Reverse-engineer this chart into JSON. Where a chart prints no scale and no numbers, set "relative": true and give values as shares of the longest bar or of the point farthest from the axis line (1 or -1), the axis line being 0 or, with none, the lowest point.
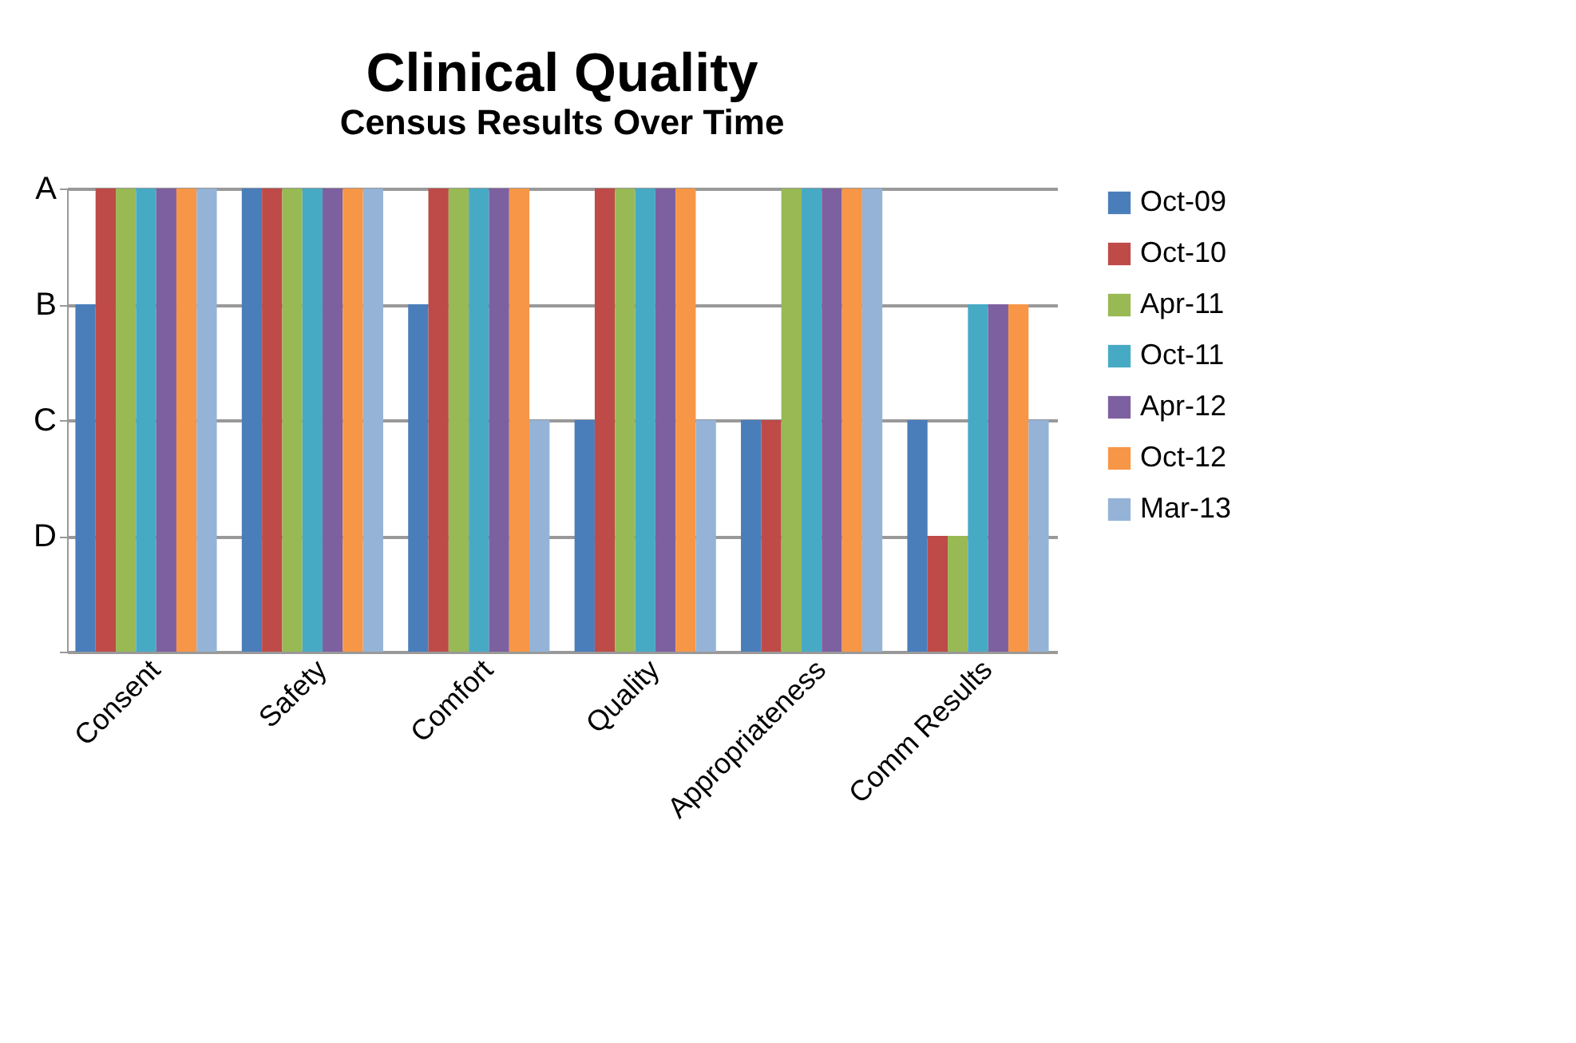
{
  "chart_data": {
    "type": "bar",
    "title": "Clinical Quality",
    "subtitle": "Census Results Over Time",
    "categories": [
      "Consent",
      "Safety",
      "Comfort",
      "Quality",
      "Appropriateness",
      "Comm Results"
    ],
    "relative": true,
    "series": [
      {
        "name": "Oct-09",
        "color": "#4a7ebb",
        "values": [
          0.75,
          1,
          0.75,
          0.5,
          0.5,
          0.5
        ]
      },
      {
        "name": "Oct-10",
        "color": "#be4b48",
        "values": [
          1,
          1,
          1,
          1,
          0.5,
          0.25
        ]
      },
      {
        "name": "Apr-11",
        "color": "#98b954",
        "values": [
          1,
          1,
          1,
          1,
          1,
          0.25
        ]
      },
      {
        "name": "Oct-11",
        "color": "#46aac5",
        "values": [
          1,
          1,
          1,
          1,
          1,
          0.75
        ]
      },
      {
        "name": "Apr-12",
        "color": "#7d60a0",
        "values": [
          1,
          1,
          1,
          1,
          1,
          0.75
        ]
      },
      {
        "name": "Oct-12",
        "color": "#f79646",
        "values": [
          1,
          1,
          1,
          1,
          1,
          0.75
        ]
      },
      {
        "name": "Mar-13",
        "color": "#95b3d7",
        "values": [
          1,
          1,
          0.5,
          0.5,
          1,
          0.5
        ]
      }
    ],
    "annotations": [
      "A",
      "B",
      "C",
      "D"
    ],
    "grid": "y",
    "legend": "right"
  }
}
